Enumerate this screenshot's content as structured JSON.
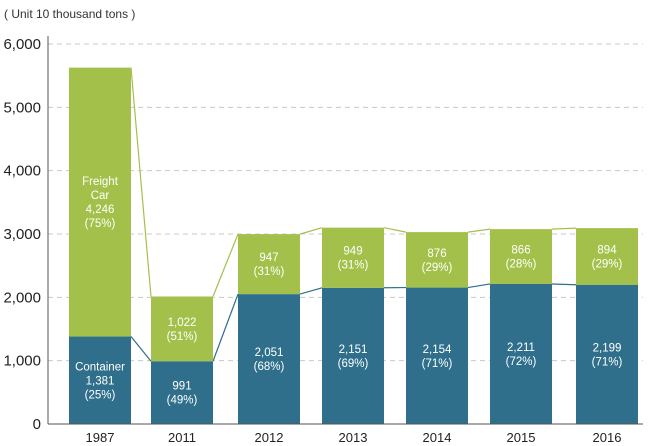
{
  "chart_data": {
    "type": "bar",
    "stacked": true,
    "unit_label": "( Unit 10 thousand tons )",
    "categories": [
      "1987",
      "2011",
      "2012",
      "2013",
      "2014",
      "2015",
      "2016"
    ],
    "ylim": [
      0,
      6000
    ],
    "yticks": [
      0,
      1000,
      2000,
      3000,
      4000,
      5000,
      6000
    ],
    "ytick_labels": [
      "0",
      "1,000",
      "2,000",
      "3,000",
      "4,000",
      "5,000",
      "6,000"
    ],
    "grid": true,
    "colors": {
      "container": "#2f6f8c",
      "freight": "#a3c14a",
      "grid": "#c9c9c9",
      "axis": "#555555"
    },
    "series": [
      {
        "name": "Container",
        "values": [
          1381,
          991,
          2051,
          2151,
          2154,
          2211,
          2199
        ],
        "labels": [
          [
            "Container",
            "1,381",
            "(25%)"
          ],
          [
            "991",
            "(49%)"
          ],
          [
            "2,051",
            "(68%)"
          ],
          [
            "2,151",
            "(69%)"
          ],
          [
            "2,154",
            "(71%)"
          ],
          [
            "2,211",
            "(72%)"
          ],
          [
            "2,199",
            "(71%)"
          ]
        ]
      },
      {
        "name": "Freight Car",
        "values": [
          4246,
          1022,
          947,
          949,
          876,
          866,
          894
        ],
        "labels": [
          [
            "Freight",
            "Car",
            "4,246",
            "(75%)"
          ],
          [
            "1,022",
            "(51%)"
          ],
          [
            "947",
            "(31%)"
          ],
          [
            "949",
            "(31%)"
          ],
          [
            "876",
            "(29%)"
          ],
          [
            "866",
            "(28%)"
          ],
          [
            "894",
            "(29%)"
          ]
        ]
      }
    ]
  }
}
